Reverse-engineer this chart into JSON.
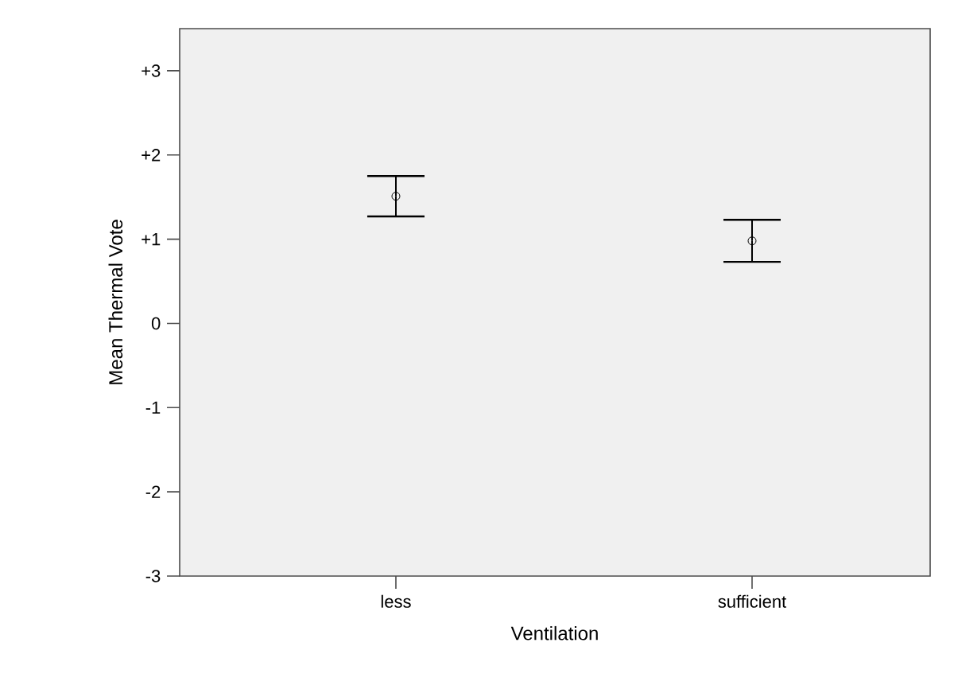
{
  "chart_data": {
    "type": "scatter",
    "xlabel": "Ventilation",
    "ylabel": "Mean Thermal Vote",
    "categories": [
      "less",
      "sufficient"
    ],
    "values": [
      1.51,
      0.98
    ],
    "errors": [
      0.24,
      0.25
    ],
    "color": "#000000",
    "marker": "circle",
    "ylim": [
      -3,
      3.5
    ],
    "yticks": [
      -3,
      -2,
      -1,
      0,
      {
        "value": 1,
        "label": "+1"
      },
      {
        "value": 2,
        "label": "+2"
      },
      {
        "value": 3,
        "label": "+3"
      }
    ]
  }
}
